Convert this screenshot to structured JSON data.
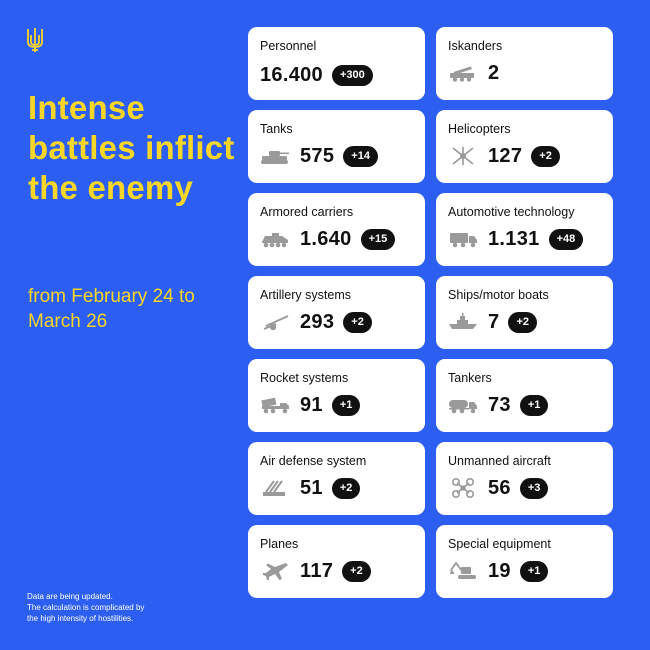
{
  "headline": "Intense battles inflict the enemy",
  "period": "from February 24 to March 26",
  "footnote": [
    "Data are being updated.",
    "The calculation is complicated by",
    "the high intensity of hostilities."
  ],
  "colors": {
    "background": "#2c5ef2",
    "accent": "#f8d627",
    "card": "#ffffff",
    "badge": "#111111"
  },
  "cards": [
    {
      "label": "Personnel",
      "value": "16.400",
      "delta": "+300",
      "icon": "none"
    },
    {
      "label": "Iskanders",
      "value": "2",
      "delta": "",
      "icon": "missile-launcher-icon"
    },
    {
      "label": "Tanks",
      "value": "575",
      "delta": "+14",
      "icon": "tank-icon"
    },
    {
      "label": "Helicopters",
      "value": "127",
      "delta": "+2",
      "icon": "helicopter-icon"
    },
    {
      "label": "Armored carriers",
      "value": "1.640",
      "delta": "+15",
      "icon": "armored-carrier-icon"
    },
    {
      "label": "Automotive technology",
      "value": "1.131",
      "delta": "+48",
      "icon": "truck-icon"
    },
    {
      "label": "Artillery systems",
      "value": "293",
      "delta": "+2",
      "icon": "artillery-icon"
    },
    {
      "label": "Ships/motor boats",
      "value": "7",
      "delta": "+2",
      "icon": "ship-icon"
    },
    {
      "label": "Rocket systems",
      "value": "91",
      "delta": "+1",
      "icon": "rocket-launcher-icon"
    },
    {
      "label": "Tankers",
      "value": "73",
      "delta": "+1",
      "icon": "fuel-tanker-icon"
    },
    {
      "label": "Air defense system",
      "value": "51",
      "delta": "+2",
      "icon": "air-defense-icon"
    },
    {
      "label": "Unmanned aircraft",
      "value": "56",
      "delta": "+3",
      "icon": "drone-icon"
    },
    {
      "label": "Planes",
      "value": "117",
      "delta": "+2",
      "icon": "plane-icon"
    },
    {
      "label": "Special equipment",
      "value": "19",
      "delta": "+1",
      "icon": "excavator-icon"
    }
  ]
}
